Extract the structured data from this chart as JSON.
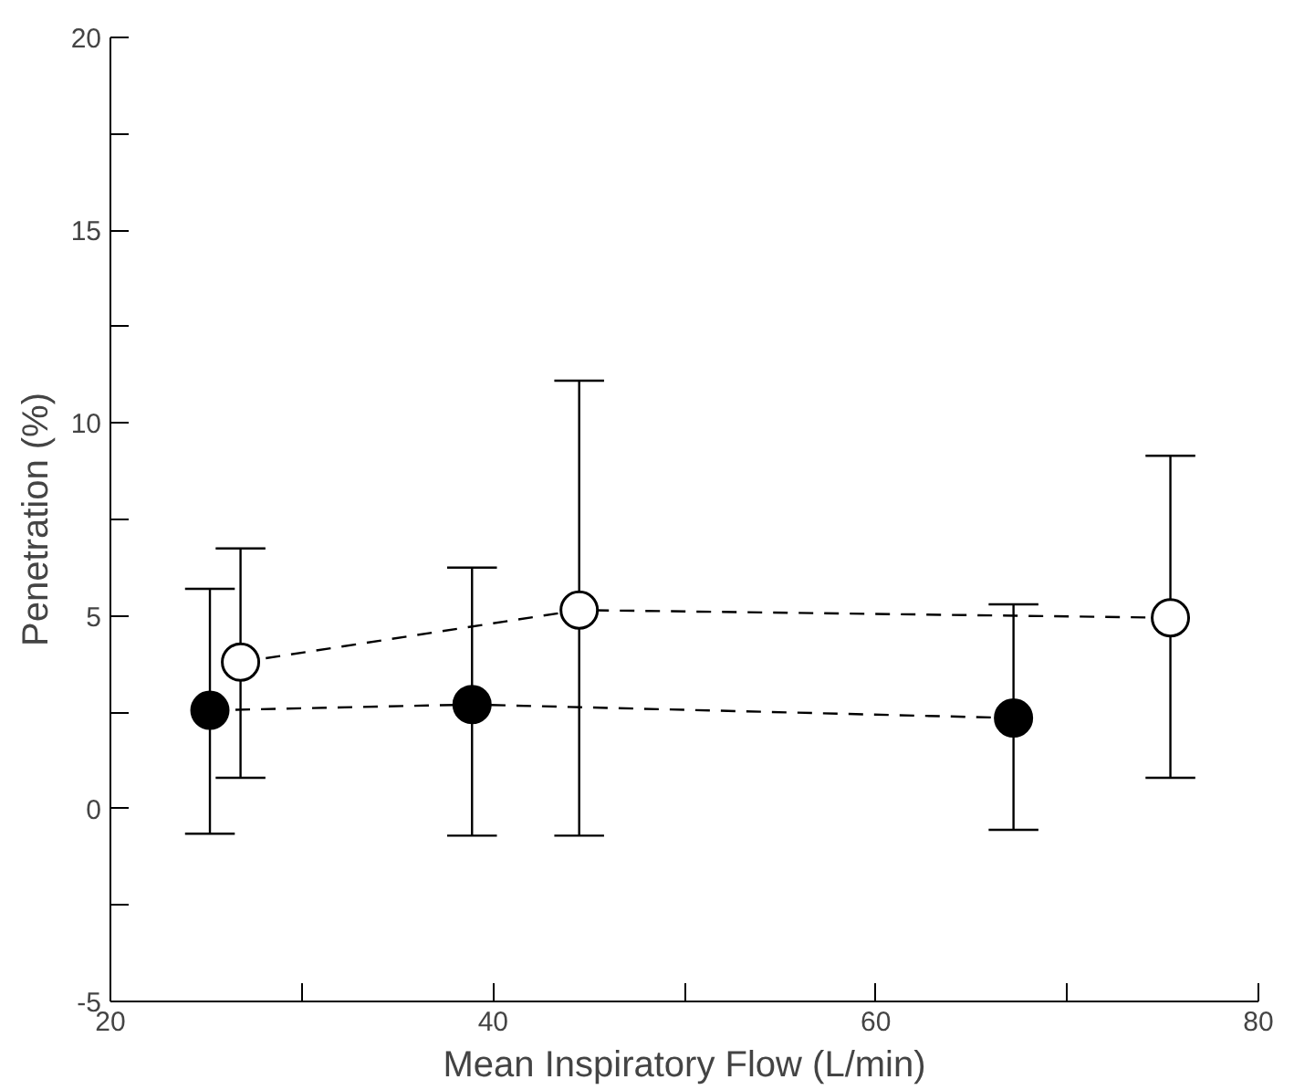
{
  "chart_data": {
    "type": "line",
    "xlabel": "Mean Inspiratory Flow (L/min)",
    "ylabel": "Penetration (%)",
    "xlim": [
      20,
      80
    ],
    "ylim": [
      -5,
      20
    ],
    "xticks": [
      20,
      {
        "value": 30,
        "label": null
      },
      40,
      {
        "value": 50,
        "label": null
      },
      60,
      {
        "value": 70,
        "label": null
      },
      80
    ],
    "yticks": [
      -5,
      {
        "value": -2.5,
        "label": null
      },
      0,
      {
        "value": 2.5,
        "label": null
      },
      5,
      {
        "value": 7.5,
        "label": null
      },
      10,
      {
        "value": 12.5,
        "label": null
      },
      15,
      {
        "value": 17.5,
        "label": null
      },
      20
    ],
    "marker": "circle",
    "line_style": "dashed",
    "grid": false,
    "series": [
      {
        "color": "#000000",
        "x": [
          25.2,
          38.9,
          67.2
        ],
        "values": [
          2.55,
          2.7,
          2.35
        ],
        "errors": [
          [
            -0.65,
            5.7
          ],
          [
            -0.7,
            6.25
          ],
          [
            -0.55,
            5.3
          ]
        ]
      },
      {
        "color": "#ffffff",
        "x": [
          26.8,
          44.5,
          75.4
        ],
        "values": [
          3.8,
          5.15,
          4.95
        ],
        "errors": [
          [
            0.8,
            6.75
          ],
          [
            -0.7,
            11.1
          ],
          [
            0.8,
            9.15
          ]
        ]
      }
    ]
  }
}
